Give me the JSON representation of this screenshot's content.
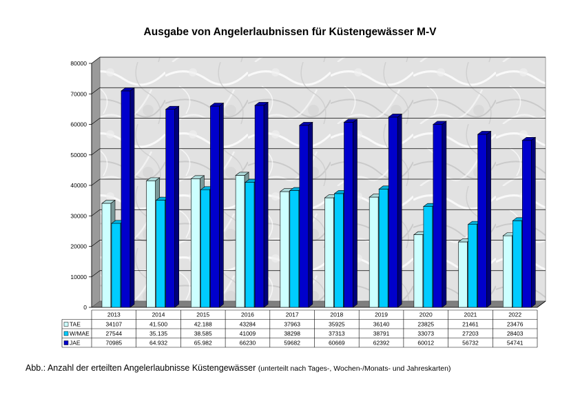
{
  "title": "Ausgabe von Angelerlaubnissen für Küstengewässer M-V",
  "caption": {
    "main": "Abb.: Anzahl der erteilten Angelerlaubnisse Küstengewässer",
    "note": "(unterteilt nach Tages-, Wochen-/Monats- und Jahreskarten)"
  },
  "chart_data": {
    "type": "bar",
    "categories": [
      "2013",
      "2014",
      "2015",
      "2016",
      "2017",
      "2018",
      "2019",
      "2020",
      "2021",
      "2022"
    ],
    "ylim": [
      0,
      80000
    ],
    "y_ticks": [
      0,
      10000,
      20000,
      30000,
      40000,
      50000,
      60000,
      70000,
      80000
    ],
    "y_tick_labels": [
      "0",
      "10000",
      "20000",
      "30000",
      "40000",
      "50000",
      "60000",
      "70000",
      "80000"
    ],
    "series": [
      {
        "name": "TAE",
        "color": "#ccffff",
        "values": [
          34107,
          41500,
          42188,
          43284,
          37963,
          35925,
          36140,
          23825,
          21461,
          23476
        ],
        "labels": [
          "34107",
          "41.500",
          "42.188",
          "43284",
          "37963",
          "35925",
          "36140",
          "23825",
          "21461",
          "23476"
        ]
      },
      {
        "name": "W/MAE",
        "color": "#00ccff",
        "values": [
          27544,
          35135,
          38585,
          41009,
          38298,
          37313,
          38791,
          33073,
          27203,
          28403
        ],
        "labels": [
          "27544",
          "35.135",
          "38.585",
          "41009",
          "38298",
          "37313",
          "38791",
          "33073",
          "27203",
          "28403"
        ]
      },
      {
        "name": "JAE",
        "color": "#0000cc",
        "values": [
          70985,
          64932,
          65982,
          66230,
          59682,
          60669,
          62392,
          60012,
          56732,
          54741
        ],
        "labels": [
          "70985",
          "64.932",
          "65.982",
          "66230",
          "59682",
          "60669",
          "62392",
          "60012",
          "56732",
          "54741"
        ]
      }
    ]
  }
}
